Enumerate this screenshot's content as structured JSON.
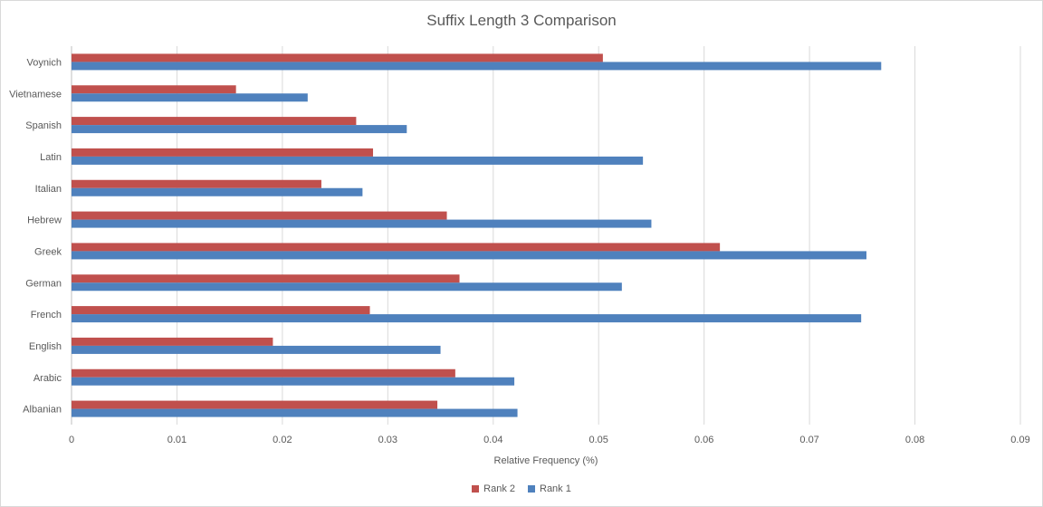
{
  "chart_data": {
    "type": "bar",
    "orientation": "horizontal",
    "title": "Suffix Length 3 Comparison",
    "xlabel": "Relative Frequency (%)",
    "ylabel": "",
    "xlim": [
      0,
      0.09
    ],
    "xticks": [
      "0",
      "0.01",
      "0.02",
      "0.03",
      "0.04",
      "0.05",
      "0.06",
      "0.07",
      "0.08",
      "0.09"
    ],
    "grid": true,
    "legend_position": "bottom",
    "categories": [
      "Voynich",
      "Vietnamese",
      "Spanish",
      "Latin",
      "Italian",
      "Hebrew",
      "Greek",
      "German",
      "French",
      "English",
      "Arabic",
      "Albanian"
    ],
    "series": [
      {
        "name": "Rank 2",
        "color": "#c0504d",
        "values": [
          0.0504,
          0.0156,
          0.027,
          0.0286,
          0.0237,
          0.0356,
          0.0615,
          0.0368,
          0.0283,
          0.0191,
          0.0364,
          0.0347
        ]
      },
      {
        "name": "Rank 1",
        "color": "#4f81bd",
        "values": [
          0.0768,
          0.0224,
          0.0318,
          0.0542,
          0.0276,
          0.055,
          0.0754,
          0.0522,
          0.0749,
          0.035,
          0.042,
          0.0423
        ]
      }
    ]
  }
}
